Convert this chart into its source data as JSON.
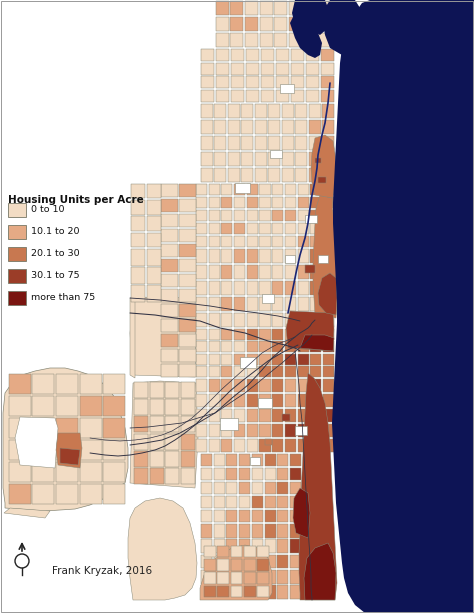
{
  "title": "Housing Units per Acre",
  "credit": "Frank Kryzak, 2016",
  "legend_labels": [
    "0 to 10",
    "10.1 to 20",
    "20.1 to 30",
    "30.1 to 75",
    "more than 75"
  ],
  "legend_colors": [
    "#f2dcc4",
    "#e5aa85",
    "#c87850",
    "#9b3d28",
    "#7a1510"
  ],
  "lake_color": "#0d1455",
  "water_color": "#0d1455",
  "background_color": "#ffffff",
  "line_color": "#444444",
  "river_color": "#1a2575",
  "figsize": [
    4.74,
    6.13
  ],
  "dpi": 100
}
